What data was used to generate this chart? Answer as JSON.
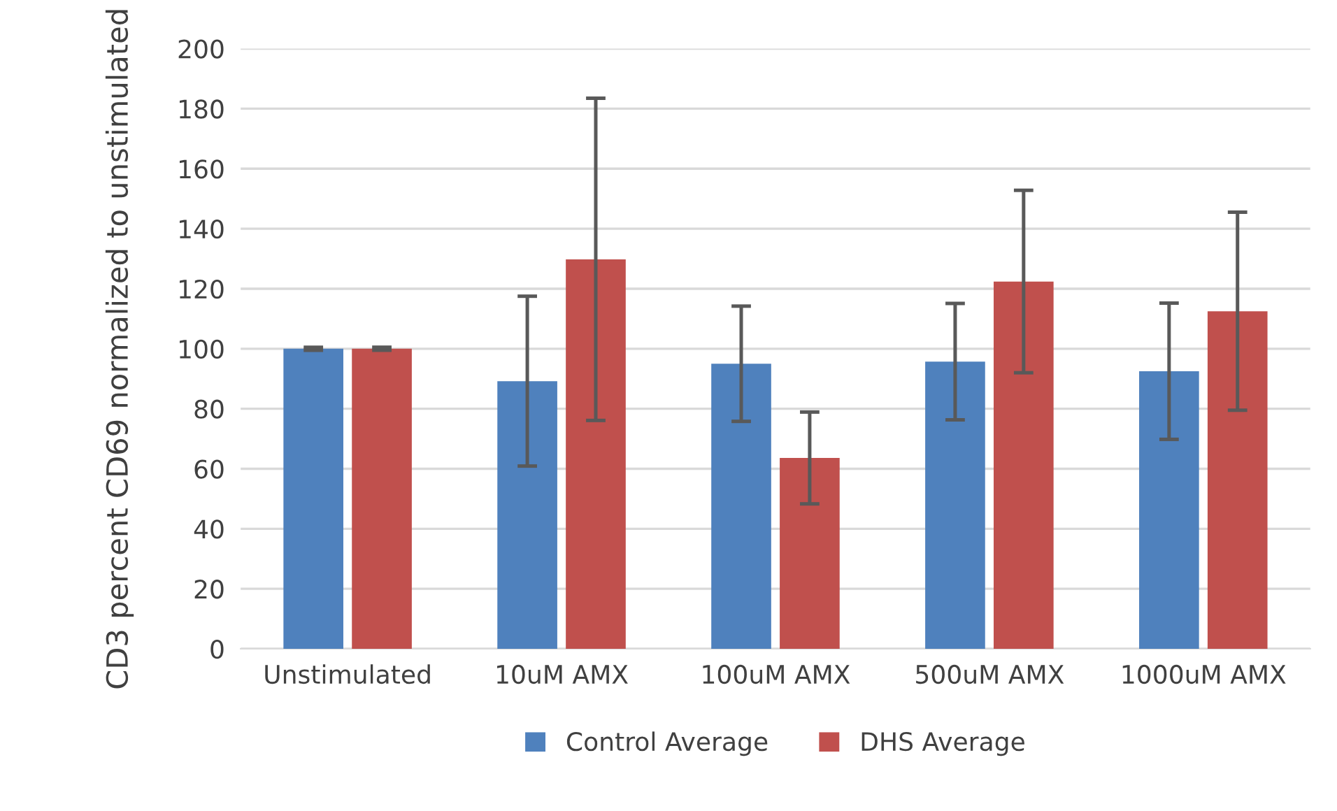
{
  "chart_data": {
    "type": "bar",
    "ylabel": "CD3 percent CD69 normalized to unstimulated",
    "categories": [
      "Unstimulated",
      "10uM AMX",
      "100uM AMX",
      "500uM AMX",
      "1000uM AMX"
    ],
    "series": [
      {
        "name": "Control Average",
        "color": "#4f81bd",
        "values": [
          100,
          89.2,
          95,
          95.7,
          92.5
        ],
        "errors": [
          0.5,
          28.3,
          19.2,
          19.4,
          22.7
        ]
      },
      {
        "name": "DHS Average",
        "color": "#c0504d",
        "values": [
          100,
          129.8,
          63.6,
          122.4,
          112.5
        ],
        "errors": [
          0.5,
          53.7,
          15.3,
          30.4,
          33
        ]
      }
    ],
    "ylim": [
      0,
      200
    ],
    "yticks": [
      0,
      20,
      40,
      60,
      80,
      100,
      120,
      140,
      160,
      180,
      200
    ],
    "grid": "y",
    "legend": "bottom"
  }
}
